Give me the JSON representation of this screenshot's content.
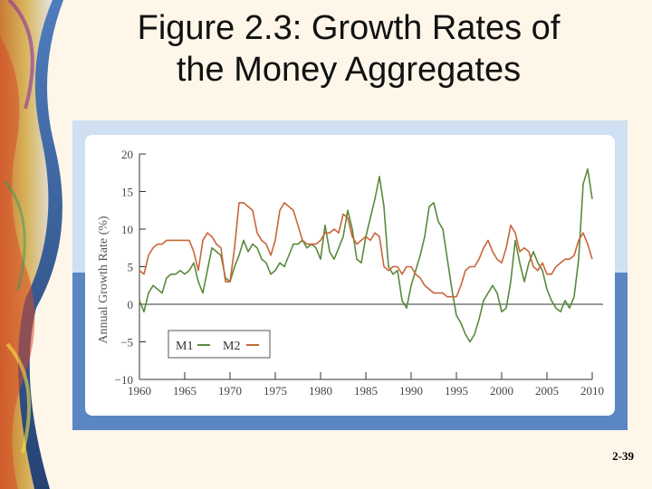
{
  "slide": {
    "title_line1": "Figure 2.3: Growth Rates of",
    "title_line2": "the Money Aggregates",
    "page_number": "2-39"
  },
  "colors": {
    "slide_background": "#fdf6e9",
    "card_light_blue": "#cfe0f2",
    "card_band_blue": "#5b86c4",
    "plot_background": "#ffffff",
    "m1_series": "#5a8a3c",
    "m2_series": "#c8663a"
  },
  "chart_data": {
    "type": "line",
    "title": "",
    "xlabel": "",
    "ylabel": "Annual Growth Rate (%)",
    "xlim": [
      1960,
      2010
    ],
    "ylim": [
      -10,
      20
    ],
    "x_ticks": [
      1960,
      1965,
      1970,
      1975,
      1980,
      1985,
      1990,
      1995,
      2000,
      2005,
      2010
    ],
    "y_ticks": [
      -10,
      -5,
      0,
      5,
      10,
      15,
      20
    ],
    "y_tick_labels": [
      "−10",
      "−5",
      "0",
      "5",
      "10",
      "15",
      "20"
    ],
    "zero_line": true,
    "grid": false,
    "legend": {
      "placement": "bottom-left",
      "entries": [
        "M1",
        "M2"
      ]
    },
    "series": [
      {
        "name": "M1",
        "color": "#5a8a3c",
        "points": [
          [
            1960,
            0.5
          ],
          [
            1960.5,
            -1
          ],
          [
            1961,
            1.5
          ],
          [
            1961.5,
            2.5
          ],
          [
            1962,
            2
          ],
          [
            1962.5,
            1.5
          ],
          [
            1963,
            3.5
          ],
          [
            1963.5,
            4
          ],
          [
            1964,
            4
          ],
          [
            1964.5,
            4.5
          ],
          [
            1965,
            4
          ],
          [
            1965.5,
            4.5
          ],
          [
            1966,
            5.5
          ],
          [
            1966.5,
            3
          ],
          [
            1967,
            1.5
          ],
          [
            1967.5,
            4.5
          ],
          [
            1968,
            7.5
          ],
          [
            1968.5,
            7
          ],
          [
            1969,
            6.5
          ],
          [
            1969.5,
            3.5
          ],
          [
            1970,
            3
          ],
          [
            1970.5,
            5
          ],
          [
            1971,
            6.5
          ],
          [
            1971.5,
            8.5
          ],
          [
            1972,
            7
          ],
          [
            1972.5,
            8
          ],
          [
            1973,
            7.5
          ],
          [
            1973.5,
            6
          ],
          [
            1974,
            5.5
          ],
          [
            1974.5,
            4
          ],
          [
            1975,
            4.5
          ],
          [
            1975.5,
            5.5
          ],
          [
            1976,
            5
          ],
          [
            1976.5,
            6.5
          ],
          [
            1977,
            8
          ],
          [
            1977.5,
            8
          ],
          [
            1978,
            8.5
          ],
          [
            1978.5,
            7.5
          ],
          [
            1979,
            8
          ],
          [
            1979.5,
            7.5
          ],
          [
            1980,
            6
          ],
          [
            1980.5,
            10.5
          ],
          [
            1981,
            7
          ],
          [
            1981.5,
            6
          ],
          [
            1982,
            7.5
          ],
          [
            1982.5,
            9
          ],
          [
            1983,
            12.5
          ],
          [
            1983.5,
            10
          ],
          [
            1984,
            6
          ],
          [
            1984.5,
            5.5
          ],
          [
            1985,
            9
          ],
          [
            1985.5,
            11.5
          ],
          [
            1986,
            14
          ],
          [
            1986.5,
            17
          ],
          [
            1987,
            13
          ],
          [
            1987.5,
            5
          ],
          [
            1988,
            4
          ],
          [
            1988.5,
            4.5
          ],
          [
            1989,
            0.5
          ],
          [
            1989.5,
            -0.5
          ],
          [
            1990,
            2.5
          ],
          [
            1990.5,
            4.5
          ],
          [
            1991,
            6.5
          ],
          [
            1991.5,
            9
          ],
          [
            1992,
            13
          ],
          [
            1992.5,
            13.5
          ],
          [
            1993,
            11
          ],
          [
            1993.5,
            10
          ],
          [
            1994,
            6
          ],
          [
            1994.5,
            2
          ],
          [
            1995,
            -1.5
          ],
          [
            1995.5,
            -2.5
          ],
          [
            1996,
            -4
          ],
          [
            1996.5,
            -5
          ],
          [
            1997,
            -4
          ],
          [
            1997.5,
            -2
          ],
          [
            1998,
            0.5
          ],
          [
            1998.5,
            1.5
          ],
          [
            1999,
            2.5
          ],
          [
            1999.5,
            1.5
          ],
          [
            2000,
            -1
          ],
          [
            2000.5,
            -0.5
          ],
          [
            2001,
            3
          ],
          [
            2001.5,
            8.5
          ],
          [
            2002,
            5.5
          ],
          [
            2002.5,
            3
          ],
          [
            2003,
            5.5
          ],
          [
            2003.5,
            7
          ],
          [
            2004,
            5.5
          ],
          [
            2004.5,
            4.5
          ],
          [
            2005,
            2
          ],
          [
            2005.5,
            0.5
          ],
          [
            2006,
            -0.5
          ],
          [
            2006.5,
            -1
          ],
          [
            2007,
            0.5
          ],
          [
            2007.5,
            -0.5
          ],
          [
            2008,
            1
          ],
          [
            2008.5,
            6
          ],
          [
            2009,
            16
          ],
          [
            2009.5,
            18
          ],
          [
            2010,
            14
          ]
        ]
      },
      {
        "name": "M2",
        "color": "#c8663a",
        "points": [
          [
            1960,
            4.5
          ],
          [
            1960.5,
            4
          ],
          [
            1961,
            6.5
          ],
          [
            1961.5,
            7.5
          ],
          [
            1962,
            8
          ],
          [
            1962.5,
            8
          ],
          [
            1963,
            8.5
          ],
          [
            1963.5,
            8.5
          ],
          [
            1964,
            8.5
          ],
          [
            1964.5,
            8.5
          ],
          [
            1965,
            8.5
          ],
          [
            1965.5,
            8.5
          ],
          [
            1966,
            7
          ],
          [
            1966.5,
            4.5
          ],
          [
            1967,
            8.5
          ],
          [
            1967.5,
            9.5
          ],
          [
            1968,
            9
          ],
          [
            1968.5,
            8
          ],
          [
            1969,
            7.5
          ],
          [
            1969.5,
            3
          ],
          [
            1970,
            3
          ],
          [
            1970.5,
            7.5
          ],
          [
            1971,
            13.5
          ],
          [
            1971.5,
            13.5
          ],
          [
            1972,
            13
          ],
          [
            1972.5,
            12.5
          ],
          [
            1973,
            9.5
          ],
          [
            1973.5,
            8.5
          ],
          [
            1974,
            8
          ],
          [
            1974.5,
            6.5
          ],
          [
            1975,
            8.5
          ],
          [
            1975.5,
            12.5
          ],
          [
            1976,
            13.5
          ],
          [
            1976.5,
            13
          ],
          [
            1977,
            12.5
          ],
          [
            1977.5,
            10.5
          ],
          [
            1978,
            8.5
          ],
          [
            1978.5,
            8
          ],
          [
            1979,
            8
          ],
          [
            1979.5,
            8
          ],
          [
            1980,
            8.5
          ],
          [
            1980.5,
            9.5
          ],
          [
            1981,
            9.5
          ],
          [
            1981.5,
            10
          ],
          [
            1982,
            9.5
          ],
          [
            1982.5,
            12
          ],
          [
            1983,
            11.5
          ],
          [
            1983.5,
            9
          ],
          [
            1984,
            8
          ],
          [
            1984.5,
            8.5
          ],
          [
            1985,
            9
          ],
          [
            1985.5,
            8.5
          ],
          [
            1986,
            9.5
          ],
          [
            1986.5,
            9
          ],
          [
            1987,
            5
          ],
          [
            1987.5,
            4.5
          ],
          [
            1988,
            5
          ],
          [
            1988.5,
            5
          ],
          [
            1989,
            4
          ],
          [
            1989.5,
            5
          ],
          [
            1990,
            5
          ],
          [
            1990.5,
            4
          ],
          [
            1991,
            3.5
          ],
          [
            1991.5,
            2.5
          ],
          [
            1992,
            2
          ],
          [
            1992.5,
            1.5
          ],
          [
            1993,
            1.5
          ],
          [
            1993.5,
            1.5
          ],
          [
            1994,
            1
          ],
          [
            1994.5,
            1
          ],
          [
            1995,
            1
          ],
          [
            1995.5,
            2.5
          ],
          [
            1996,
            4.5
          ],
          [
            1996.5,
            5
          ],
          [
            1997,
            5
          ],
          [
            1997.5,
            6
          ],
          [
            1998,
            7.5
          ],
          [
            1998.5,
            8.5
          ],
          [
            1999,
            7
          ],
          [
            1999.5,
            6
          ],
          [
            2000,
            5.5
          ],
          [
            2000.5,
            7.5
          ],
          [
            2001,
            10.5
          ],
          [
            2001.5,
            9.5
          ],
          [
            2002,
            7
          ],
          [
            2002.5,
            7.5
          ],
          [
            2003,
            7
          ],
          [
            2003.5,
            5
          ],
          [
            2004,
            4.5
          ],
          [
            2004.5,
            5.5
          ],
          [
            2005,
            4
          ],
          [
            2005.5,
            4
          ],
          [
            2006,
            5
          ],
          [
            2006.5,
            5.5
          ],
          [
            2007,
            6
          ],
          [
            2007.5,
            6
          ],
          [
            2008,
            6.5
          ],
          [
            2008.5,
            8.5
          ],
          [
            2009,
            9.5
          ],
          [
            2009.5,
            8
          ],
          [
            2010,
            6
          ]
        ]
      }
    ]
  }
}
